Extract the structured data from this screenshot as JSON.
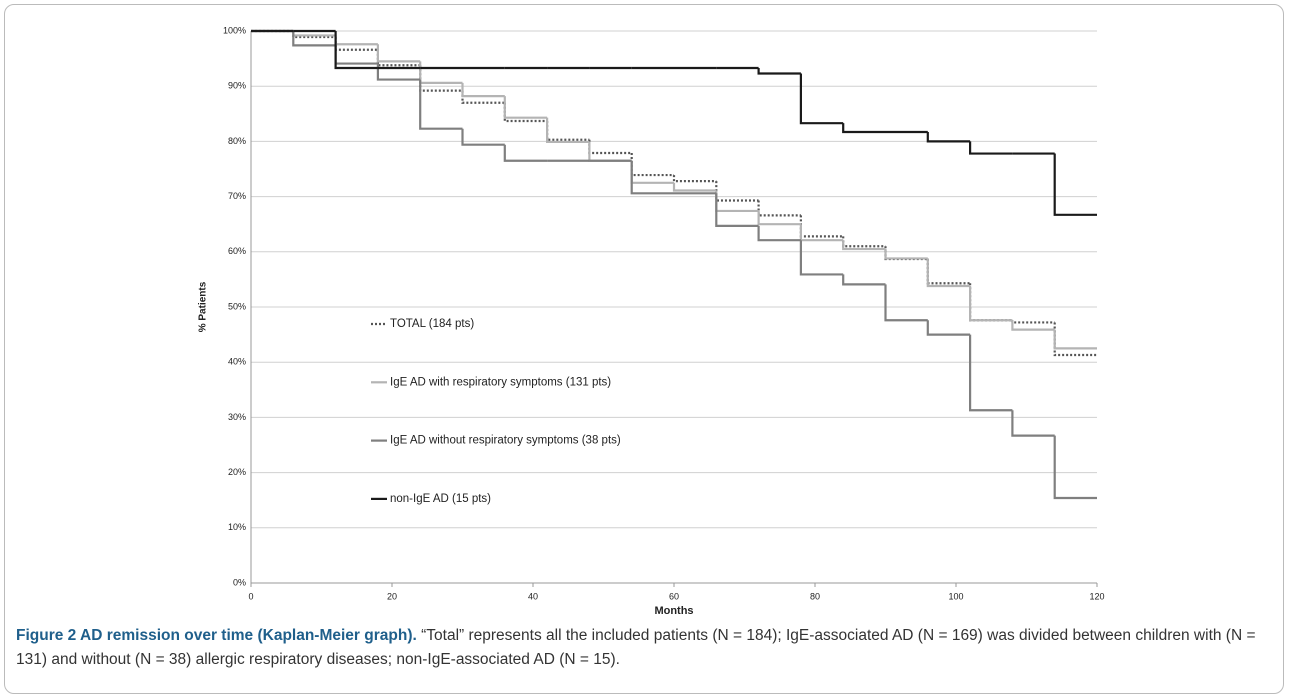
{
  "chart_data": {
    "type": "step",
    "xlabel": "Months",
    "ylabel": "% Patients",
    "x": [
      0,
      6,
      12,
      18,
      24,
      30,
      36,
      42,
      48,
      54,
      60,
      66,
      72,
      78,
      84,
      90,
      96,
      102,
      108,
      114,
      120
    ],
    "series": [
      {
        "name": "TOTAL (184 pts)",
        "color": "#555555",
        "line_style": "dotted",
        "values": [
          100,
          98.9,
          96.6,
          93.8,
          89.2,
          87,
          83.7,
          80.3,
          77.9,
          73.9,
          72.8,
          69.3,
          66.6,
          62.8,
          61,
          58.7,
          54.3,
          47.6,
          47.2,
          41.3,
          41.3
        ]
      },
      {
        "name": "IgE AD with respiratory symptoms (131 pts)",
        "color": "#b4b4b4",
        "line_style": "solid",
        "values": [
          100,
          99.2,
          97.6,
          94.5,
          90.6,
          88.2,
          84.3,
          79.9,
          76.5,
          72.5,
          71.1,
          67.4,
          65,
          62.1,
          60.5,
          58.8,
          53.8,
          47.6,
          45.9,
          42.5,
          42.5
        ]
      },
      {
        "name": "IgE AD without respiratory symptoms (38 pts)",
        "color": "#7f7f7f",
        "line_style": "solid",
        "values": [
          100,
          97.4,
          94.1,
          91.2,
          82.3,
          79.4,
          76.5,
          76.5,
          76.5,
          70.6,
          70.6,
          64.7,
          62.1,
          55.9,
          54.1,
          47.6,
          45,
          31.3,
          26.7,
          15.4,
          15.4
        ]
      },
      {
        "name": "non-IgE AD (15 pts)",
        "color": "#1a1a1a",
        "line_style": "solid",
        "values": [
          100,
          100,
          93.3,
          93.3,
          93.3,
          93.3,
          93.3,
          93.3,
          93.3,
          93.3,
          93.3,
          93.3,
          92.3,
          83.3,
          81.7,
          81.7,
          80,
          77.8,
          77.8,
          66.7,
          66.7
        ]
      }
    ],
    "xlim": [
      0,
      120
    ],
    "xticks": [
      0,
      20,
      40,
      60,
      80,
      100,
      120
    ],
    "ylim": [
      0,
      100
    ],
    "yticks": [
      {
        "value": 0,
        "label": "0%"
      },
      {
        "value": 10,
        "label": "10%"
      },
      {
        "value": 20,
        "label": "20%"
      },
      {
        "value": 30,
        "label": "30%"
      },
      {
        "value": 40,
        "label": "40%"
      },
      {
        "value": 50,
        "label": "50%"
      },
      {
        "value": 60,
        "label": "60%"
      },
      {
        "value": 70,
        "label": "70%"
      },
      {
        "value": 80,
        "label": "80%"
      },
      {
        "value": 90,
        "label": "90%"
      },
      {
        "value": 100,
        "label": "100%"
      }
    ],
    "grid": true
  },
  "caption": {
    "title": "Figure 2 AD remission over time (Kaplan-Meier graph).",
    "text": "“Total” represents all the included patients (N = 184); IgE-associated AD (N = 169) was divided between children with (N = 131) and without (N = 38) allergic respiratory diseases; non-IgE-associated AD (N = 15)."
  }
}
